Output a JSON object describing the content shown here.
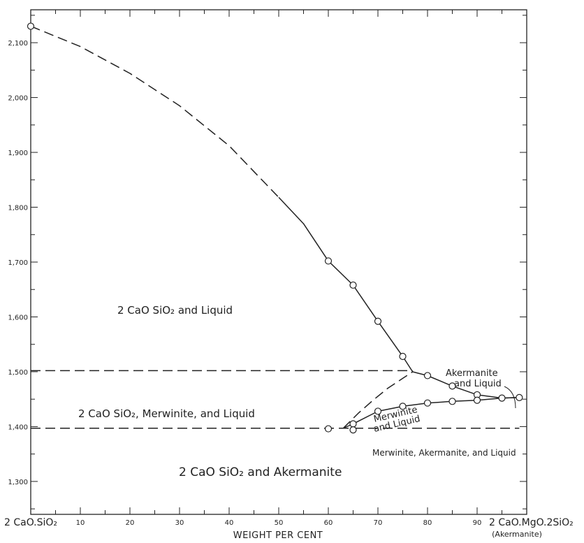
{
  "chart_data": {
    "type": "line",
    "title": "",
    "xlabel": "WEIGHT PER CENT",
    "ylabel": "",
    "xlim": [
      0,
      100
    ],
    "ylim": [
      1240,
      2160
    ],
    "grid": false,
    "x_ticks": [
      {
        "value": 10,
        "label": "10"
      },
      {
        "value": 20,
        "label": "20"
      },
      {
        "value": 30,
        "label": "30"
      },
      {
        "value": 40,
        "label": "40"
      },
      {
        "value": 50,
        "label": "50"
      },
      {
        "value": 60,
        "label": "60"
      },
      {
        "value": 70,
        "label": "70"
      },
      {
        "value": 80,
        "label": "80"
      },
      {
        "value": 90,
        "label": "90"
      }
    ],
    "y_ticks": [
      {
        "value": 1300,
        "label": "1,300"
      },
      {
        "value": 1400,
        "label": "1,400"
      },
      {
        "value": 1500,
        "label": "1,500"
      },
      {
        "value": 1600,
        "label": "1,600"
      },
      {
        "value": 1700,
        "label": "1,700"
      },
      {
        "value": 1800,
        "label": "1,800"
      },
      {
        "value": 1900,
        "label": "1,900"
      },
      {
        "value": 2000,
        "label": "2,000"
      },
      {
        "value": 2100,
        "label": "2,100"
      }
    ],
    "end_labels": {
      "left": "2 CaO.SiO₂",
      "right": "2 CaO.MgO.2SiO₂",
      "right_sub": "(Akermanite)"
    },
    "series": [
      {
        "style": "dashed",
        "points": [
          [
            0,
            2130
          ],
          [
            10,
            2093
          ],
          [
            20,
            2044
          ],
          [
            30,
            1985
          ],
          [
            40,
            1912
          ],
          [
            50,
            1818
          ]
        ]
      },
      {
        "style": "solid",
        "points": [
          [
            50,
            1818
          ],
          [
            55,
            1770
          ],
          [
            60,
            1702
          ],
          [
            65,
            1658
          ],
          [
            70,
            1592
          ],
          [
            75,
            1528
          ],
          [
            77,
            1500
          ]
        ]
      },
      {
        "style": "solid",
        "points": [
          [
            77,
            1500
          ],
          [
            80,
            1493
          ],
          [
            85,
            1474
          ],
          [
            90,
            1458
          ],
          [
            95,
            1452
          ],
          [
            98.5,
            1453
          ]
        ]
      },
      {
        "style": "solid",
        "points": [
          [
            63,
            1397
          ],
          [
            65,
            1405
          ],
          [
            70,
            1428
          ],
          [
            75,
            1437
          ],
          [
            80,
            1443
          ],
          [
            85,
            1446
          ],
          [
            90,
            1448
          ],
          [
            95,
            1452
          ],
          [
            98.5,
            1453
          ]
        ]
      },
      {
        "style": "dashed",
        "points": [
          [
            63,
            1397
          ],
          [
            66,
            1424
          ],
          [
            69,
            1448
          ],
          [
            72,
            1470
          ],
          [
            75,
            1488
          ],
          [
            77,
            1500
          ]
        ]
      },
      {
        "style": "dashed",
        "points": [
          [
            0,
            1502
          ],
          [
            77,
            1502
          ]
        ]
      },
      {
        "style": "dashed",
        "points": [
          [
            0,
            1397
          ],
          [
            98.5,
            1397
          ]
        ]
      }
    ],
    "markers": [
      [
        0,
        2130
      ],
      [
        60,
        1702
      ],
      [
        65,
        1658
      ],
      [
        70,
        1592
      ],
      [
        75,
        1528
      ],
      [
        80,
        1493
      ],
      [
        85,
        1474
      ],
      [
        90,
        1458
      ],
      [
        95,
        1452
      ],
      [
        98.5,
        1453
      ],
      [
        60,
        1396
      ],
      [
        65,
        1405
      ],
      [
        70,
        1428
      ],
      [
        75,
        1437
      ],
      [
        80,
        1443
      ],
      [
        85,
        1446
      ],
      [
        90,
        1448
      ],
      [
        65,
        1394
      ]
    ],
    "annotations": [
      {
        "text": "2 CaO SiO₂ and Liquid"
      },
      {
        "text": "2 CaO SiO₂, Merwinite, and Liquid"
      },
      {
        "text": "2 CaO SiO₂ and Akermanite"
      },
      {
        "text": "Merwinite"
      },
      {
        "text": "and Liquid"
      },
      {
        "text": "Akermanite"
      },
      {
        "text": "and Liquid"
      },
      {
        "text": "Merwinite, Akermanite, and Liquid"
      }
    ]
  }
}
